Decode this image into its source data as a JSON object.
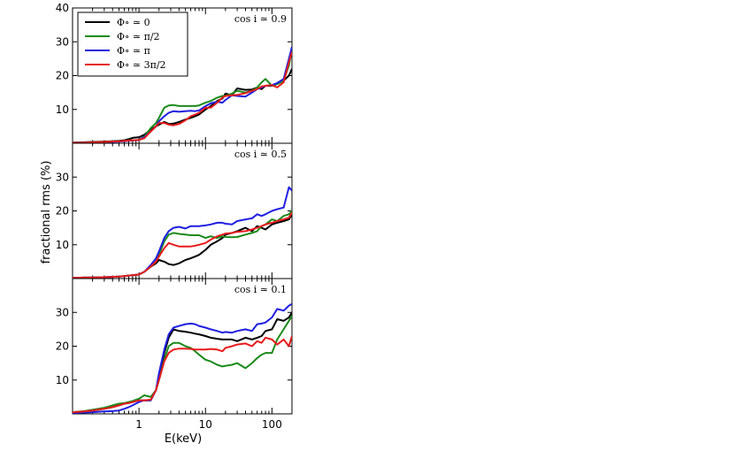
{
  "figure": {
    "ylabel": "fractional rms (%)",
    "xlabel": "E(keV)",
    "x_ticks": [
      1,
      10,
      100
    ],
    "x_tick_labels": [
      "1",
      "10",
      "100"
    ],
    "xlim": [
      0.1,
      200
    ]
  },
  "legend": {
    "position": "top-left of top panel",
    "entries": [
      {
        "label": "Φ∘ ≃ 0",
        "color": "#000000"
      },
      {
        "label": "Φ∘ ≃ π/2",
        "color": "#1a8a1a"
      },
      {
        "label": "Φ∘ ≃ π",
        "color": "#1f1fe0"
      },
      {
        "label": "Φ∘ ≃ 3π/2",
        "color": "#e81c1c"
      }
    ]
  },
  "chart_data": [
    {
      "type": "line",
      "panel": "top",
      "annotation": "cos i ≃ 0.9",
      "xscale": "log",
      "xlim": [
        0.1,
        200
      ],
      "ylim": [
        0,
        40
      ],
      "yticks": [
        10,
        20,
        30,
        40
      ],
      "ytick_labels": [
        "10",
        "20",
        "30",
        "40"
      ],
      "x": [
        0.1,
        0.15,
        0.2,
        0.3,
        0.4,
        0.5,
        0.6,
        0.7,
        0.8,
        1.0,
        1.2,
        1.5,
        1.8,
        2.0,
        2.4,
        2.8,
        3.3,
        4.0,
        5.0,
        6.0,
        7.0,
        8.0,
        10,
        12,
        15,
        18,
        20,
        25,
        30,
        40,
        50,
        60,
        70,
        80,
        100,
        120,
        150,
        180,
        200
      ],
      "series": [
        {
          "name": "Φ∘ ≃ 0",
          "color": "#000000",
          "values": [
            0.2,
            0.3,
            0.4,
            0.5,
            0.6,
            0.7,
            0.9,
            1.2,
            1.6,
            1.8,
            2.5,
            4.0,
            5.0,
            5.5,
            6.3,
            5.7,
            5.8,
            6.3,
            7.0,
            7.5,
            8.0,
            8.5,
            10.0,
            11.0,
            12.5,
            13.2,
            14.7,
            14.2,
            16.2,
            15.8,
            15.9,
            16.5,
            16.0,
            17.0,
            17.0,
            17.5,
            18.5,
            20.0,
            22.0
          ]
        },
        {
          "name": "Φ∘ ≃ π/2",
          "color": "#1a8a1a",
          "values": [
            0.1,
            0.2,
            0.3,
            0.4,
            0.5,
            0.6,
            0.7,
            0.8,
            0.9,
            1.0,
            2.0,
            4.5,
            6.0,
            7.5,
            10.5,
            11.2,
            11.3,
            11.0,
            11.0,
            11.0,
            11.0,
            11.2,
            12.0,
            12.5,
            13.5,
            14.0,
            14.0,
            14.7,
            15.5,
            15.0,
            15.5,
            16.5,
            18.0,
            19.0,
            17.0,
            17.5,
            18.5,
            23.0,
            28.0
          ]
        },
        {
          "name": "Φ∘ ≃ π",
          "color": "#1f1fe0",
          "values": [
            0.1,
            0.2,
            0.2,
            0.3,
            0.4,
            0.5,
            0.6,
            0.7,
            0.8,
            1.0,
            1.8,
            3.5,
            5.0,
            6.5,
            8.0,
            9.0,
            9.5,
            9.3,
            9.5,
            9.6,
            9.5,
            9.7,
            11.0,
            11.8,
            12.3,
            12.0,
            12.8,
            14.2,
            14.0,
            13.8,
            15.0,
            16.0,
            16.5,
            17.0,
            17.2,
            17.8,
            19.0,
            25.0,
            28.5
          ]
        },
        {
          "name": "Φ∘ ≃ 3π/2",
          "color": "#e81c1c",
          "values": [
            0.1,
            0.2,
            0.3,
            0.4,
            0.5,
            0.6,
            0.7,
            0.8,
            0.9,
            1.0,
            1.5,
            3.5,
            5.0,
            6.0,
            6.0,
            5.5,
            5.3,
            5.7,
            6.8,
            8.0,
            8.5,
            9.0,
            10.5,
            10.5,
            12.0,
            13.5,
            14.0,
            14.2,
            14.3,
            14.8,
            15.5,
            16.0,
            16.8,
            17.0,
            17.2,
            16.5,
            18.0,
            24.0,
            27.0
          ]
        }
      ]
    },
    {
      "type": "line",
      "panel": "middle",
      "annotation": "cos i ≃ 0.5",
      "xscale": "log",
      "xlim": [
        0.1,
        200
      ],
      "ylim": [
        0,
        40
      ],
      "yticks": [
        10,
        20,
        30
      ],
      "ytick_labels": [
        "10",
        "20",
        "30"
      ],
      "x": [
        0.1,
        0.15,
        0.2,
        0.3,
        0.4,
        0.5,
        0.6,
        0.7,
        0.8,
        1.0,
        1.2,
        1.5,
        1.8,
        2.0,
        2.4,
        2.8,
        3.3,
        4.0,
        5.0,
        6.0,
        7.0,
        8.0,
        10,
        12,
        15,
        18,
        20,
        25,
        30,
        40,
        50,
        60,
        70,
        80,
        100,
        120,
        150,
        180,
        200
      ],
      "series": [
        {
          "name": "Φ∘ ≃ 0",
          "color": "#000000",
          "values": [
            0.2,
            0.3,
            0.3,
            0.4,
            0.5,
            0.6,
            0.7,
            0.9,
            1.0,
            1.2,
            2.0,
            3.5,
            4.5,
            5.5,
            5.0,
            4.3,
            4.0,
            4.5,
            5.5,
            6.0,
            6.5,
            7.0,
            8.5,
            10.0,
            11.0,
            12.0,
            13.0,
            13.5,
            14.0,
            15.0,
            14.0,
            15.5,
            15.0,
            14.5,
            16.0,
            16.5,
            17.0,
            17.5,
            19.0
          ]
        },
        {
          "name": "Φ∘ ≃ π/2",
          "color": "#1a8a1a",
          "values": [
            0.2,
            0.3,
            0.3,
            0.4,
            0.5,
            0.6,
            0.7,
            0.9,
            1.0,
            1.2,
            2.0,
            3.5,
            5.0,
            7.0,
            11.0,
            13.0,
            13.5,
            13.2,
            13.0,
            12.8,
            12.8,
            12.8,
            12.0,
            12.5,
            12.0,
            12.5,
            12.3,
            12.2,
            12.3,
            13.0,
            13.5,
            14.0,
            15.5,
            16.0,
            17.5,
            17.0,
            18.5,
            19.0,
            20.0
          ]
        },
        {
          "name": "Φ∘ ≃ π",
          "color": "#1f1fe0",
          "values": [
            0.2,
            0.3,
            0.3,
            0.4,
            0.5,
            0.6,
            0.7,
            0.9,
            1.0,
            1.2,
            2.0,
            4.0,
            6.0,
            8.0,
            12.0,
            14.0,
            15.0,
            15.3,
            14.8,
            15.5,
            15.5,
            15.5,
            15.7,
            16.0,
            16.5,
            16.5,
            16.2,
            16.0,
            17.0,
            17.5,
            17.8,
            19.0,
            18.5,
            19.0,
            20.0,
            20.5,
            21.0,
            27.0,
            26.0
          ]
        },
        {
          "name": "Φ∘ ≃ 3π/2",
          "color": "#e81c1c",
          "values": [
            0.2,
            0.3,
            0.3,
            0.4,
            0.5,
            0.6,
            0.7,
            0.9,
            1.0,
            1.2,
            2.0,
            3.5,
            5.0,
            6.5,
            9.0,
            10.5,
            10.0,
            9.5,
            9.5,
            9.5,
            9.7,
            10.0,
            10.5,
            11.5,
            12.5,
            13.0,
            13.3,
            13.5,
            13.8,
            14.0,
            14.5,
            15.0,
            15.5,
            16.0,
            16.5,
            17.0,
            17.5,
            18.0,
            19.5
          ]
        }
      ]
    },
    {
      "type": "line",
      "panel": "bottom",
      "annotation": "cos i ≃ 0.1",
      "xscale": "log",
      "xlim": [
        0.1,
        200
      ],
      "ylim": [
        0,
        40
      ],
      "yticks": [
        10,
        20,
        30
      ],
      "ytick_labels": [
        "10",
        "20",
        "30"
      ],
      "x": [
        0.1,
        0.15,
        0.2,
        0.3,
        0.4,
        0.5,
        0.6,
        0.7,
        0.8,
        1.0,
        1.2,
        1.5,
        1.8,
        2.0,
        2.4,
        2.8,
        3.3,
        4.0,
        5.0,
        6.0,
        7.0,
        8.0,
        10,
        12,
        15,
        18,
        20,
        25,
        30,
        40,
        50,
        60,
        70,
        80,
        100,
        120,
        150,
        180,
        200
      ],
      "series": [
        {
          "name": "Φ∘ ≃ 0",
          "color": "#000000",
          "values": [
            0.5,
            0.7,
            1.0,
            1.5,
            2.0,
            2.5,
            3.0,
            3.2,
            3.5,
            4.0,
            4.0,
            4.0,
            7.0,
            11.0,
            18.0,
            22.5,
            25.0,
            24.5,
            24.3,
            24.0,
            23.7,
            23.5,
            23.0,
            22.5,
            22.2,
            22.0,
            22.0,
            22.0,
            21.5,
            22.5,
            22.0,
            22.5,
            23.0,
            24.5,
            25.0,
            28.0,
            27.5,
            28.5,
            30.0
          ]
        },
        {
          "name": "Φ∘ ≃ π/2",
          "color": "#1a8a1a",
          "values": [
            0.5,
            0.8,
            1.2,
            1.8,
            2.5,
            3.0,
            3.2,
            3.5,
            3.8,
            4.5,
            5.5,
            5.0,
            7.0,
            10.0,
            16.0,
            20.0,
            21.0,
            21.0,
            20.0,
            19.5,
            18.5,
            17.5,
            16.0,
            15.5,
            14.5,
            14.0,
            14.2,
            14.5,
            15.0,
            13.5,
            15.0,
            16.5,
            17.5,
            18.0,
            18.0,
            22.0,
            25.0,
            27.5,
            29.0
          ]
        },
        {
          "name": "Φ∘ ≃ π",
          "color": "#1f1fe0",
          "values": [
            0.3,
            0.4,
            0.5,
            0.7,
            0.8,
            1.0,
            1.5,
            2.0,
            2.5,
            3.5,
            4.0,
            4.0,
            7.0,
            12.0,
            19.0,
            23.5,
            25.5,
            26.0,
            26.5,
            26.7,
            26.5,
            26.0,
            25.5,
            25.0,
            24.5,
            24.0,
            24.2,
            24.0,
            24.5,
            25.0,
            24.5,
            26.5,
            26.7,
            27.0,
            28.5,
            31.0,
            30.5,
            32.0,
            32.5
          ]
        },
        {
          "name": "Φ∘ ≃ 3π/2",
          "color": "#e81c1c",
          "values": [
            0.5,
            0.7,
            1.0,
            1.5,
            2.0,
            2.5,
            3.0,
            3.2,
            3.5,
            4.0,
            4.0,
            4.2,
            7.0,
            10.0,
            15.5,
            18.0,
            19.0,
            19.3,
            19.3,
            19.2,
            19.0,
            19.0,
            19.0,
            19.2,
            19.0,
            18.5,
            19.5,
            20.0,
            20.5,
            20.8,
            20.0,
            21.5,
            21.0,
            22.5,
            22.0,
            20.5,
            22.0,
            20.0,
            23.0
          ]
        }
      ]
    }
  ]
}
